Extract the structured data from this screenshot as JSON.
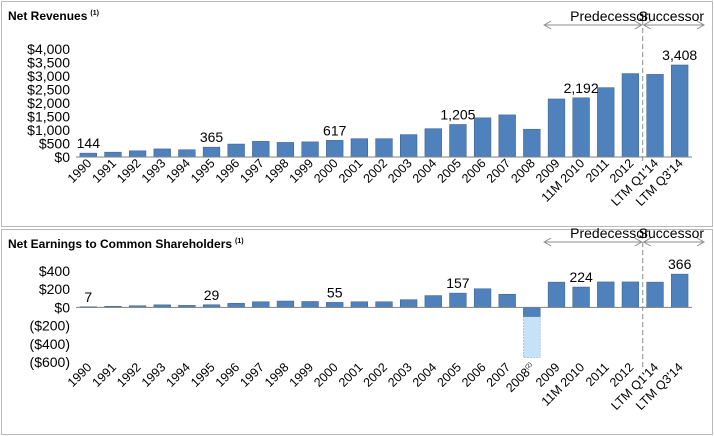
{
  "period_labels": {
    "predecessor": "Predecessor",
    "successor": "Successor"
  },
  "colors": {
    "bar": "#4f81bd",
    "bar_edge": "#385d8a",
    "bar_light": "#c6e2f8",
    "bar_light_edge": "#7fb3e0",
    "divider": "#8c8c8c",
    "arrow": "#8c8c8c",
    "axis": "#7f7f7f"
  },
  "chart_data": [
    {
      "type": "bar",
      "title": "Net Revenues",
      "title_note": "(1)",
      "categories": [
        "1990",
        "1991",
        "1992",
        "1993",
        "1994",
        "1995",
        "1996",
        "1997",
        "1998",
        "1999",
        "2000",
        "2001",
        "2002",
        "2003",
        "2004",
        "2005",
        "2006",
        "2007",
        "2008",
        "2009",
        "11M 2010",
        "2011",
        "2012",
        "LTM Q1'14",
        "LTM Q3'14"
      ],
      "values": [
        144,
        180,
        230,
        300,
        270,
        365,
        480,
        580,
        540,
        560,
        617,
        680,
        680,
        830,
        1050,
        1205,
        1450,
        1560,
        1030,
        2150,
        2192,
        2570,
        3090,
        3060,
        3408
      ],
      "data_labels": {
        "0": "144",
        "5": "365",
        "10": "617",
        "15": "1,205",
        "20": "2,192",
        "24": "3,408"
      },
      "ylim": [
        0,
        4000
      ],
      "yticks": [
        0,
        500,
        1000,
        1500,
        2000,
        2500,
        3000,
        3500,
        4000
      ],
      "ytick_labels": [
        "$0",
        "$500",
        "$1,000",
        "$1,500",
        "$2,000",
        "$2,500",
        "$3,000",
        "$3,500",
        "$4,000"
      ],
      "predecessor_range": [
        19,
        22
      ],
      "successor_range": [
        23,
        24
      ],
      "grid": false,
      "legend": "none"
    },
    {
      "type": "bar",
      "title": "Net Earnings to Common Shareholders",
      "title_note": "(1)",
      "categories": [
        "1990",
        "1991",
        "1992",
        "1993",
        "1994",
        "1995",
        "1996",
        "1997",
        "1998",
        "1999",
        "2000",
        "2001",
        "2002",
        "2003",
        "2004",
        "2005",
        "2006",
        "2007",
        "2008",
        "2009",
        "11M 2010",
        "2011",
        "2012",
        "LTM Q1'14",
        "LTM Q3'14"
      ],
      "category_notes": {
        "18": "(2)"
      },
      "values": [
        7,
        12,
        18,
        28,
        22,
        29,
        45,
        62,
        70,
        65,
        55,
        62,
        62,
        85,
        130,
        157,
        205,
        145,
        -100,
        278,
        224,
        280,
        280,
        278,
        366
      ],
      "ghost_bar": {
        "index": 18,
        "value": -550
      },
      "data_labels": {
        "0": "7",
        "5": "29",
        "10": "55",
        "15": "157",
        "20": "224",
        "24": "366"
      },
      "ylim": [
        -600,
        400
      ],
      "yticks": [
        -600,
        -400,
        -200,
        0,
        200,
        400
      ],
      "ytick_labels": [
        "($600)",
        "($400)",
        "($200)",
        "$0",
        "$200",
        "$400"
      ],
      "predecessor_range": [
        19,
        22
      ],
      "successor_range": [
        23,
        24
      ],
      "grid": false,
      "legend": "none"
    }
  ]
}
